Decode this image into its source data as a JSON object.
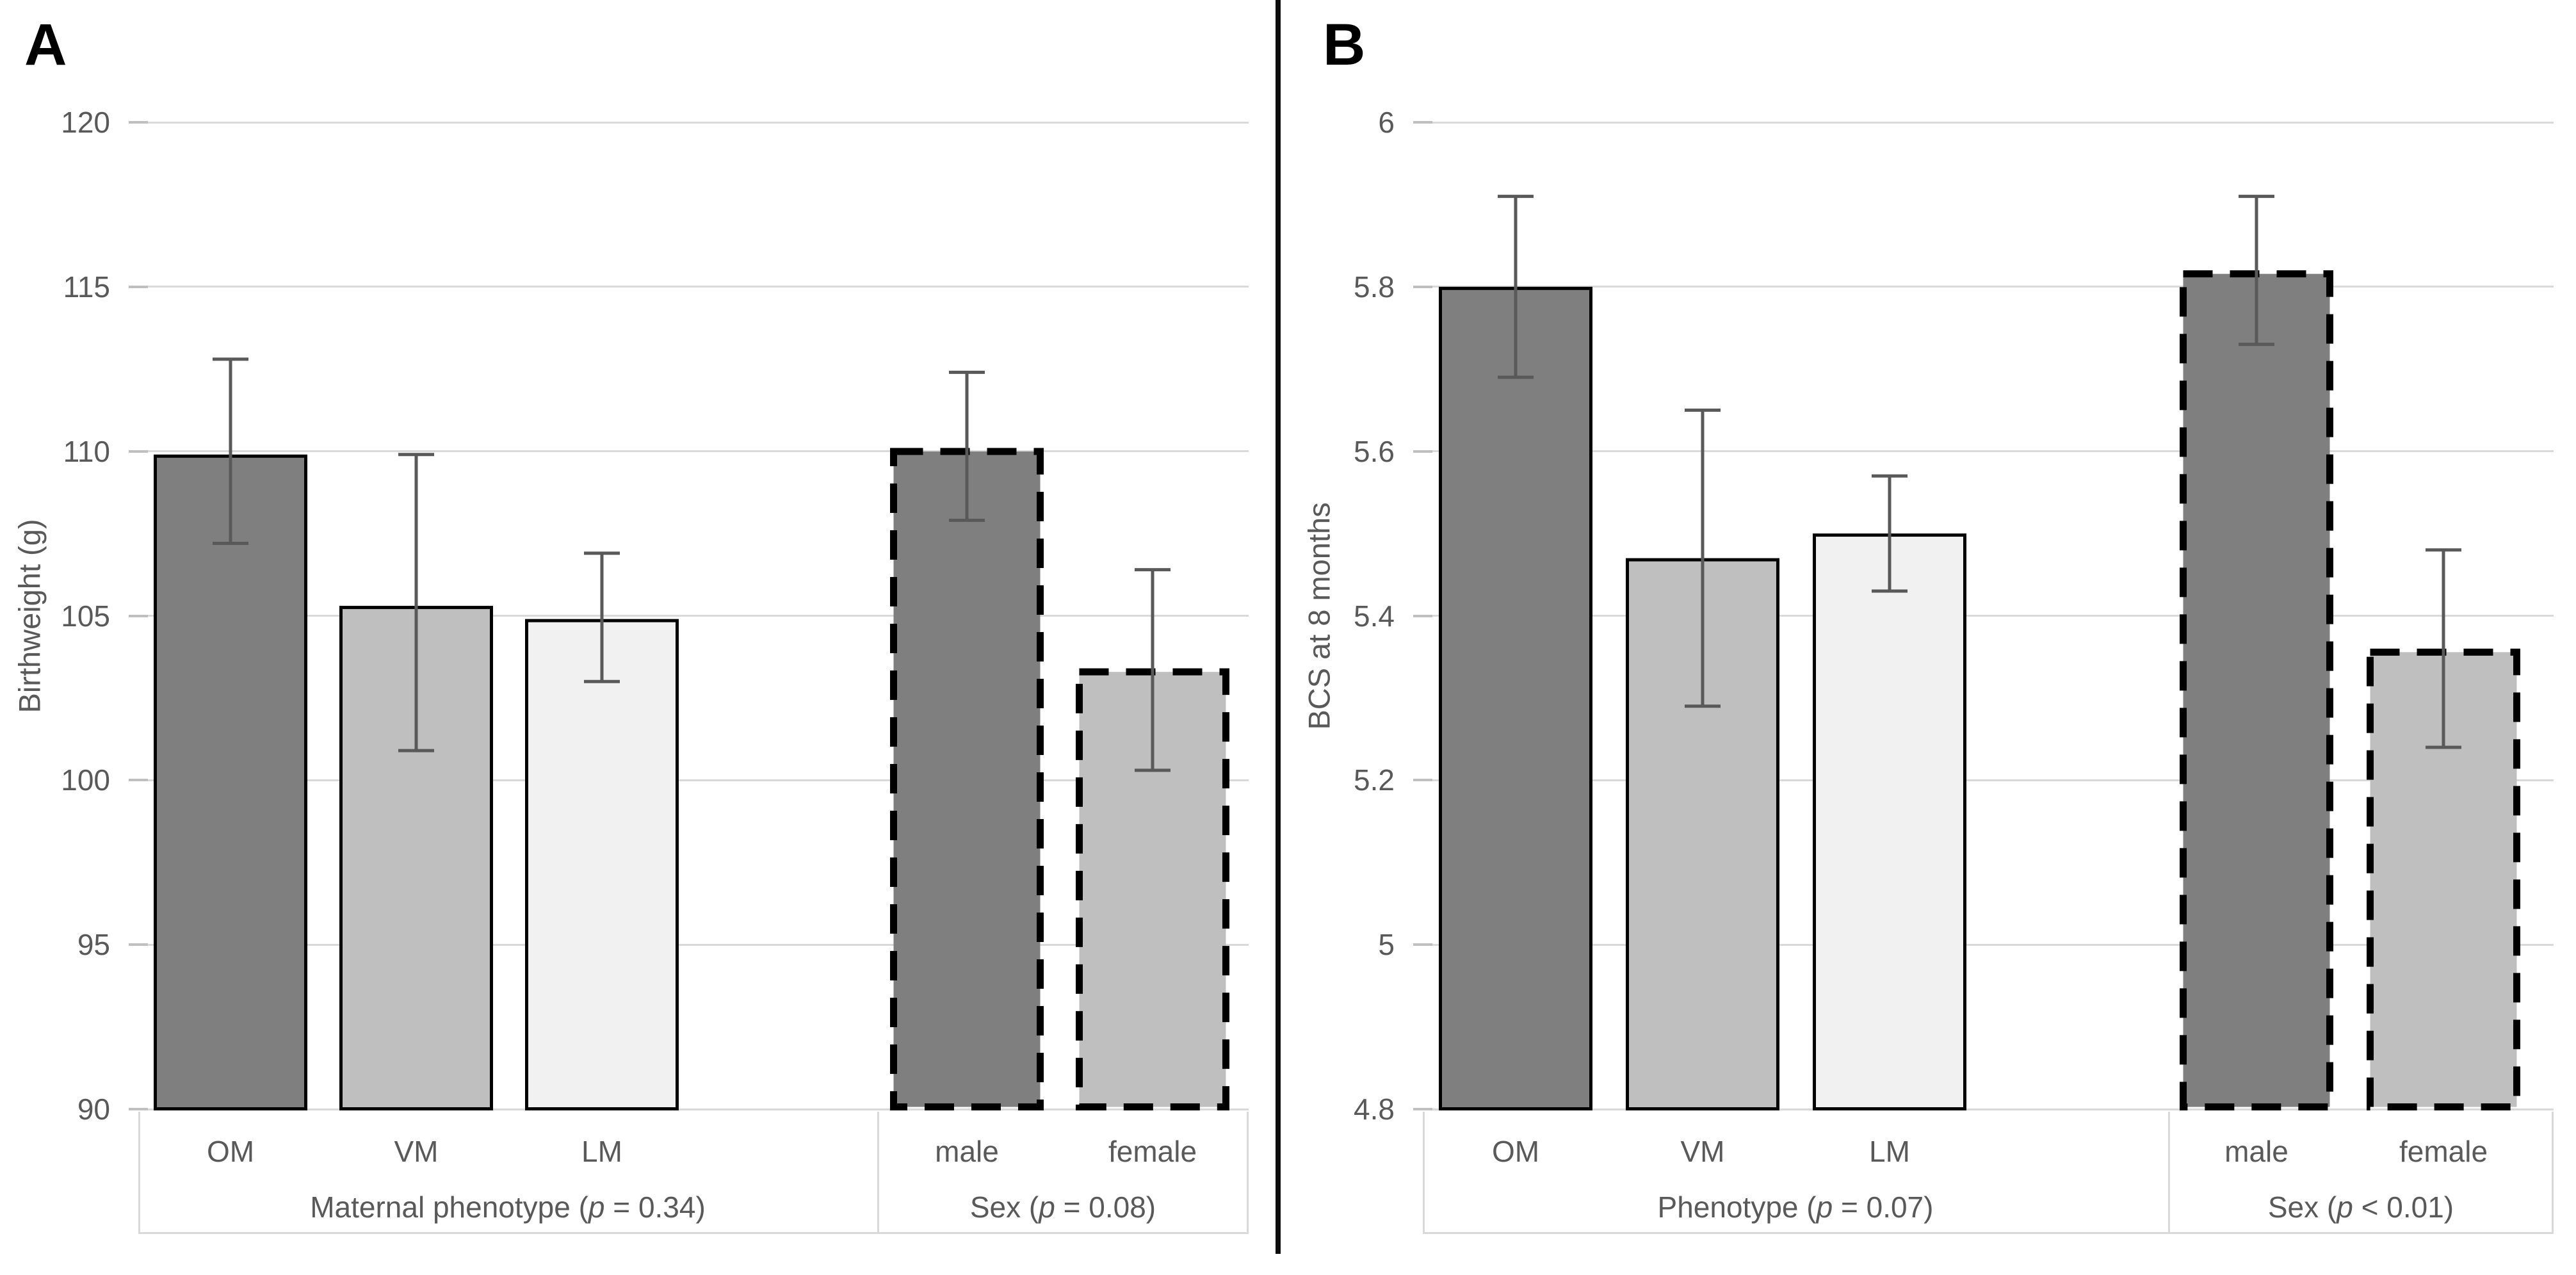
{
  "chart_data": [
    {
      "type": "bar",
      "panel_letter": "A",
      "ylabel": "Birthweight (g)",
      "ylim": [
        90,
        120
      ],
      "ytick_labels": [
        "120",
        "115",
        "110",
        "105",
        "100",
        "95",
        "90"
      ],
      "categories": [
        "OM",
        "VM",
        "LM",
        "male",
        "female"
      ],
      "values": [
        109.9,
        105.3,
        104.9,
        110.1,
        103.4
      ],
      "error_low": [
        107.2,
        100.9,
        103.0,
        107.9,
        100.3
      ],
      "error_high": [
        112.8,
        109.9,
        106.9,
        112.4,
        106.4
      ],
      "bar_fills": [
        "#7f7f7f",
        "#bfbfbf",
        "#f1f1f1",
        "#7f7f7f",
        "#bfbfbf"
      ],
      "bar_dashed": [
        false,
        false,
        false,
        true,
        true
      ],
      "groups": [
        {
          "pre": "Maternal phenotype (",
          "p": "p",
          "post": " = 0.34)",
          "categories_span": [
            0,
            2
          ]
        },
        {
          "pre": "Sex (",
          "p": "p",
          "post": " = 0.08)",
          "categories_span": [
            3,
            4
          ]
        }
      ],
      "grid": true,
      "legend": "none"
    },
    {
      "type": "bar",
      "panel_letter": "B",
      "ylabel": "BCS at 8 months",
      "ylim": [
        4.8,
        6
      ],
      "ytick_labels": [
        "6",
        "5.8",
        "5.6",
        "5.4",
        "5.2",
        "5",
        "4.8"
      ],
      "categories": [
        "OM",
        "VM",
        "LM",
        "male",
        "female"
      ],
      "values": [
        5.8,
        5.47,
        5.5,
        5.82,
        5.36
      ],
      "error_low": [
        5.69,
        5.29,
        5.43,
        5.73,
        5.24
      ],
      "error_high": [
        5.91,
        5.65,
        5.57,
        5.91,
        5.48
      ],
      "bar_fills": [
        "#7f7f7f",
        "#bfbfbf",
        "#f1f1f1",
        "#7f7f7f",
        "#bfbfbf"
      ],
      "bar_dashed": [
        false,
        false,
        false,
        true,
        true
      ],
      "groups": [
        {
          "pre": "Phenotype (",
          "p": "p",
          "post": " = 0.07)",
          "categories_span": [
            0,
            2
          ]
        },
        {
          "pre": "Sex (",
          "p": "p",
          "post": " < 0.01)",
          "categories_span": [
            3,
            4
          ]
        }
      ],
      "grid": true,
      "legend": "none"
    }
  ],
  "style_colors": {
    "grid_line": "#d9d9d9",
    "tick_mark": "#bfbfbf",
    "axis_text": "#595959",
    "error_bar": "#595959",
    "bar_border": "#000000",
    "panel_divider": "#0d0d0d",
    "background": "#ffffff"
  }
}
